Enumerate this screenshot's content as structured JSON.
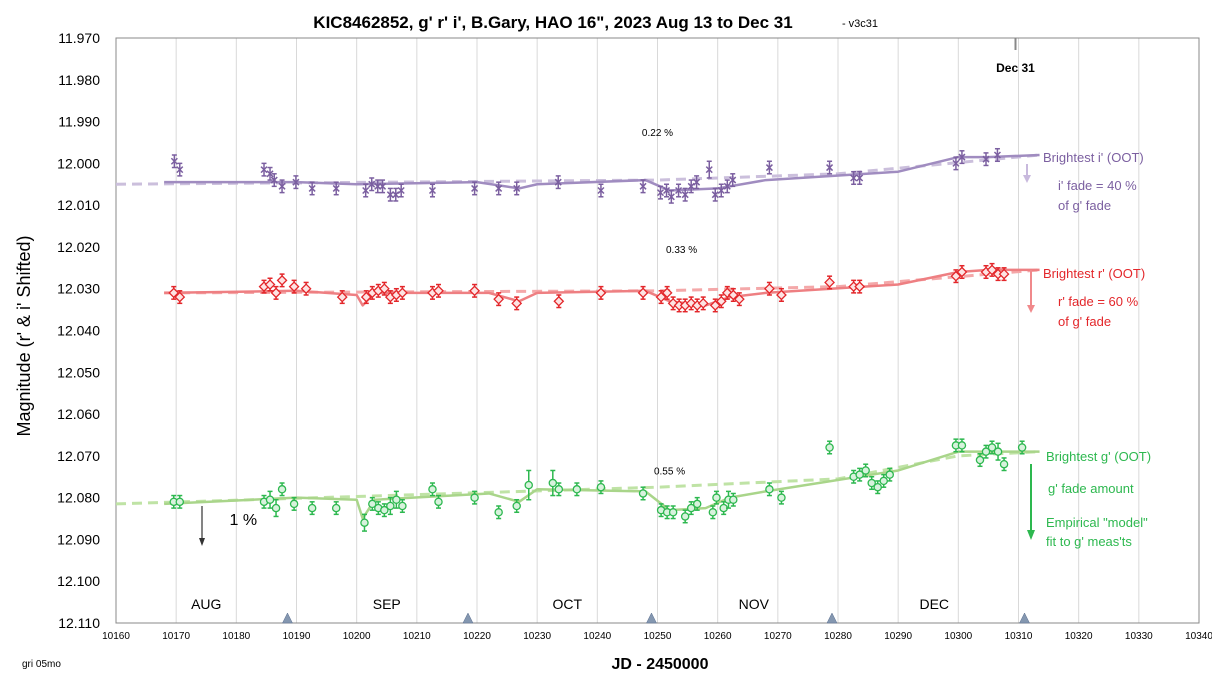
{
  "chart_data": {
    "type": "scatter",
    "title": "KIC8462852, g' r' i', B.Gary, HAO 16\", 2023 Aug 13 to Dec 31",
    "version": "- v3c31",
    "xlabel": "JD - 2450000",
    "ylabel": "Magnitude  (r' & i' Shifted)",
    "footnote": "gri 05mo",
    "xlim": [
      10160,
      10340
    ],
    "ylim": [
      11.97,
      12.11
    ],
    "y_inverted": true,
    "xticks": [
      10160,
      10170,
      10180,
      10190,
      10200,
      10210,
      10220,
      10230,
      10240,
      10250,
      10260,
      10270,
      10280,
      10290,
      10300,
      10310,
      10320,
      10330,
      10340
    ],
    "yticks": [
      11.97,
      11.98,
      11.99,
      12.0,
      12.01,
      12.02,
      12.03,
      12.04,
      12.05,
      12.06,
      12.07,
      12.08,
      12.09,
      12.1,
      12.11
    ],
    "ytick_labels": [
      "11.970",
      "11.980",
      "11.990",
      "12.000",
      "12.010",
      "12.020",
      "12.030",
      "12.040",
      "12.050",
      "12.060",
      "12.070",
      "12.080",
      "12.090",
      "12.100",
      "12.110"
    ],
    "grid": "vertical",
    "months": [
      {
        "label": "AUG",
        "x": 10175
      },
      {
        "label": "SEP",
        "x": 10205
      },
      {
        "label": "OCT",
        "x": 10235
      },
      {
        "label": "NOV",
        "x": 10266
      },
      {
        "label": "DEC",
        "x": 10296
      }
    ],
    "month_markers": [
      10188.5,
      10218.5,
      10249,
      10279,
      10311
    ],
    "dec31_marker": {
      "label": "Dec 31",
      "x": 10309.5
    },
    "series": [
      {
        "name": "i'",
        "color": "#7b5fa0",
        "marker": "x",
        "points": [
          [
            10169.7,
            11.9995,
            0.0015
          ],
          [
            10170.6,
            12.0015,
            0.0015
          ],
          [
            10184.6,
            12.0015,
            0.0015
          ],
          [
            10185.6,
            12.0025,
            0.0015
          ],
          [
            10186.3,
            12.004,
            0.0015
          ],
          [
            10187.6,
            12.0055,
            0.0015
          ],
          [
            10189.9,
            12.0045,
            0.0015
          ],
          [
            10192.6,
            12.006,
            0.0015
          ],
          [
            10196.6,
            12.006,
            0.0015
          ],
          [
            10201.5,
            12.0065,
            0.0015
          ],
          [
            10202.5,
            12.005,
            0.0015
          ],
          [
            10203.5,
            12.0055,
            0.0015
          ],
          [
            10204.3,
            12.0055,
            0.0015
          ],
          [
            10205.6,
            12.0075,
            0.0015
          ],
          [
            10206.5,
            12.0075,
            0.0015
          ],
          [
            10207.4,
            12.0065,
            0.0015
          ],
          [
            10212.6,
            12.0065,
            0.0015
          ],
          [
            10219.6,
            12.006,
            0.0015
          ],
          [
            10223.6,
            12.006,
            0.0015
          ],
          [
            10226.6,
            12.006,
            0.0015
          ],
          [
            10233.5,
            12.0045,
            0.0015
          ],
          [
            10240.6,
            12.0065,
            0.0015
          ],
          [
            10247.6,
            12.0055,
            0.0015
          ],
          [
            10250.5,
            12.007,
            0.0015
          ],
          [
            10251.5,
            12.0065,
            0.0015
          ],
          [
            10252.3,
            12.008,
            0.0015
          ],
          [
            10253.5,
            12.0065,
            0.0015
          ],
          [
            10254.6,
            12.0075,
            0.0015
          ],
          [
            10255.6,
            12.0055,
            0.0015
          ],
          [
            10256.5,
            12.0045,
            0.0015
          ],
          [
            10258.6,
            12.0015,
            0.002
          ],
          [
            10259.6,
            12.0075,
            0.0015
          ],
          [
            10260.6,
            12.0065,
            0.0015
          ],
          [
            10261.6,
            12.0055,
            0.0015
          ],
          [
            10262.5,
            12.004,
            0.0015
          ],
          [
            10268.6,
            12.001,
            0.0015
          ],
          [
            10278.6,
            12.001,
            0.0015
          ],
          [
            10282.6,
            12.0035,
            0.0015
          ],
          [
            10283.6,
            12.0035,
            0.0015
          ],
          [
            10299.6,
            12.0,
            0.0015
          ],
          [
            10300.6,
            11.9985,
            0.0015
          ],
          [
            10304.6,
            11.999,
            0.0015
          ],
          [
            10306.5,
            11.998,
            0.0015
          ]
        ],
        "trend_line": [
          [
            10160,
            12.005
          ],
          [
            10250,
            12.004
          ],
          [
            10280,
            12.0025
          ],
          [
            10313.5,
            11.998
          ]
        ],
        "model_line": [
          [
            10168,
            12.0045
          ],
          [
            10190,
            12.0045
          ],
          [
            10200,
            12.005
          ],
          [
            10220,
            12.0045
          ],
          [
            10227,
            12.006
          ],
          [
            10230,
            12.005
          ],
          [
            10248,
            12.004
          ],
          [
            10252,
            12.0065
          ],
          [
            10260,
            12.006
          ],
          [
            10268,
            12.004
          ],
          [
            10290,
            12.002
          ],
          [
            10300,
            11.9985
          ],
          [
            10305,
            11.9985
          ],
          [
            10313.5,
            11.998
          ]
        ]
      },
      {
        "name": "r'",
        "color": "#e3262a",
        "marker": "diamond",
        "points": [
          [
            10169.6,
            12.031,
            0.0015
          ],
          [
            10170.6,
            12.032,
            0.0015
          ],
          [
            10184.6,
            12.0295,
            0.0015
          ],
          [
            10185.6,
            12.029,
            0.0015
          ],
          [
            10186.6,
            12.031,
            0.0015
          ],
          [
            10187.6,
            12.028,
            0.0015
          ],
          [
            10189.6,
            12.0295,
            0.0015
          ],
          [
            10191.6,
            12.03,
            0.0015
          ],
          [
            10197.6,
            12.032,
            0.0015
          ],
          [
            10201.6,
            12.032,
            0.0015
          ],
          [
            10202.6,
            12.031,
            0.0015
          ],
          [
            10203.6,
            12.0305,
            0.0015
          ],
          [
            10204.6,
            12.03,
            0.0015
          ],
          [
            10205.6,
            12.032,
            0.0015
          ],
          [
            10206.6,
            12.0315,
            0.0015
          ],
          [
            10207.6,
            12.031,
            0.0015
          ],
          [
            10212.6,
            12.031,
            0.0015
          ],
          [
            10213.6,
            12.0305,
            0.0015
          ],
          [
            10219.6,
            12.0305,
            0.0015
          ],
          [
            10223.6,
            12.0325,
            0.0015
          ],
          [
            10226.6,
            12.0335,
            0.0015
          ],
          [
            10233.6,
            12.033,
            0.0015
          ],
          [
            10240.6,
            12.031,
            0.0015
          ],
          [
            10247.6,
            12.031,
            0.0015
          ],
          [
            10250.6,
            12.032,
            0.0015
          ],
          [
            10251.6,
            12.031,
            0.0015
          ],
          [
            10252.6,
            12.0335,
            0.0015
          ],
          [
            10253.6,
            12.034,
            0.0015
          ],
          [
            10254.6,
            12.034,
            0.0015
          ],
          [
            10255.6,
            12.0335,
            0.0015
          ],
          [
            10256.6,
            12.034,
            0.0015
          ],
          [
            10257.6,
            12.0335,
            0.0015
          ],
          [
            10259.6,
            12.034,
            0.0015
          ],
          [
            10260.6,
            12.033,
            0.0015
          ],
          [
            10261.6,
            12.031,
            0.0015
          ],
          [
            10262.6,
            12.0315,
            0.0015
          ],
          [
            10263.6,
            12.0325,
            0.0015
          ],
          [
            10268.6,
            12.03,
            0.0015
          ],
          [
            10270.6,
            12.0315,
            0.0015
          ],
          [
            10278.6,
            12.0285,
            0.0015
          ],
          [
            10282.6,
            12.0295,
            0.0015
          ],
          [
            10283.6,
            12.0295,
            0.0015
          ],
          [
            10299.6,
            12.027,
            0.0015
          ],
          [
            10300.6,
            12.026,
            0.0015
          ],
          [
            10304.6,
            12.026,
            0.0015
          ],
          [
            10305.6,
            12.0255,
            0.0015
          ],
          [
            10306.6,
            12.0265,
            0.0015
          ],
          [
            10307.6,
            12.0265,
            0.0015
          ]
        ],
        "trend_line": [
          [
            10168,
            12.031
          ],
          [
            10250,
            12.0305
          ],
          [
            10280,
            12.0295
          ],
          [
            10313.5,
            12.0255
          ]
        ],
        "model_line": [
          [
            10168,
            12.031
          ],
          [
            10190,
            12.0305
          ],
          [
            10200,
            12.0315
          ],
          [
            10201,
            12.034
          ],
          [
            10203,
            12.031
          ],
          [
            10222,
            12.031
          ],
          [
            10227,
            12.033
          ],
          [
            10230,
            12.031
          ],
          [
            10248,
            12.0305
          ],
          [
            10252,
            12.033
          ],
          [
            10258,
            12.034
          ],
          [
            10262,
            12.032
          ],
          [
            10268,
            12.031
          ],
          [
            10290,
            12.029
          ],
          [
            10300,
            12.026
          ],
          [
            10305,
            12.0255
          ],
          [
            10313.5,
            12.0255
          ]
        ]
      },
      {
        "name": "g'",
        "color": "#2db84f",
        "marker": "circle",
        "points": [
          [
            10169.6,
            12.081,
            0.0015
          ],
          [
            10170.6,
            12.081,
            0.0015
          ],
          [
            10184.6,
            12.081,
            0.0015
          ],
          [
            10185.6,
            12.0805,
            0.002
          ],
          [
            10186.6,
            12.0825,
            0.002
          ],
          [
            10187.6,
            12.078,
            0.0015
          ],
          [
            10189.6,
            12.0815,
            0.0015
          ],
          [
            10192.6,
            12.0825,
            0.0015
          ],
          [
            10196.6,
            12.0825,
            0.0015
          ],
          [
            10201.3,
            12.086,
            0.002
          ],
          [
            10202.6,
            12.0815,
            0.0015
          ],
          [
            10203.6,
            12.0825,
            0.0015
          ],
          [
            10204.6,
            12.083,
            0.0015
          ],
          [
            10205.6,
            12.082,
            0.002
          ],
          [
            10206.6,
            12.0805,
            0.002
          ],
          [
            10207.6,
            12.082,
            0.0015
          ],
          [
            10212.6,
            12.078,
            0.0015
          ],
          [
            10213.6,
            12.081,
            0.0015
          ],
          [
            10219.6,
            12.08,
            0.0015
          ],
          [
            10223.6,
            12.0835,
            0.0015
          ],
          [
            10226.6,
            12.082,
            0.0015
          ],
          [
            10228.6,
            12.077,
            0.0035
          ],
          [
            10232.6,
            12.0765,
            0.003
          ],
          [
            10233.6,
            12.078,
            0.0015
          ],
          [
            10236.6,
            12.078,
            0.0015
          ],
          [
            10240.6,
            12.0775,
            0.0015
          ],
          [
            10247.6,
            12.079,
            0.0015
          ],
          [
            10250.6,
            12.083,
            0.0015
          ],
          [
            10251.6,
            12.0835,
            0.0015
          ],
          [
            10252.6,
            12.0835,
            0.0015
          ],
          [
            10254.6,
            12.0845,
            0.0015
          ],
          [
            10255.6,
            12.0825,
            0.0015
          ],
          [
            10256.6,
            12.0815,
            0.0015
          ],
          [
            10259.2,
            12.0835,
            0.0015
          ],
          [
            10259.8,
            12.08,
            0.0015
          ],
          [
            10261.0,
            12.0825,
            0.0015
          ],
          [
            10261.8,
            12.0805,
            0.002
          ],
          [
            10262.6,
            12.0805,
            0.0015
          ],
          [
            10268.6,
            12.078,
            0.0015
          ],
          [
            10270.6,
            12.08,
            0.0015
          ],
          [
            10278.6,
            12.068,
            0.0015
          ],
          [
            10282.6,
            12.075,
            0.0015
          ],
          [
            10283.6,
            12.0745,
            0.0015
          ],
          [
            10284.6,
            12.0735,
            0.0015
          ],
          [
            10285.6,
            12.0765,
            0.0015
          ],
          [
            10286.6,
            12.0775,
            0.0015
          ],
          [
            10287.6,
            12.076,
            0.0015
          ],
          [
            10288.6,
            12.0745,
            0.0015
          ],
          [
            10299.6,
            12.0675,
            0.0015
          ],
          [
            10300.6,
            12.0675,
            0.0015
          ],
          [
            10303.6,
            12.071,
            0.0015
          ],
          [
            10304.6,
            12.069,
            0.0015
          ],
          [
            10305.6,
            12.068,
            0.0015
          ],
          [
            10306.6,
            12.069,
            0.002
          ],
          [
            10307.6,
            12.072,
            0.0015
          ],
          [
            10310.6,
            12.068,
            0.0015
          ]
        ],
        "trend_line": [
          [
            10160,
            12.0815
          ],
          [
            10250,
            12.0775
          ],
          [
            10280,
            12.0755
          ],
          [
            10300,
            12.07
          ],
          [
            10313.5,
            12.069
          ]
        ],
        "model_line": [
          [
            10168,
            12.0815
          ],
          [
            10190,
            12.08
          ],
          [
            10200,
            12.0805
          ],
          [
            10201,
            12.085
          ],
          [
            10203,
            12.0805
          ],
          [
            10222,
            12.079
          ],
          [
            10227,
            12.081
          ],
          [
            10230,
            12.078
          ],
          [
            10248,
            12.0785
          ],
          [
            10252,
            12.083
          ],
          [
            10258,
            12.0825
          ],
          [
            10262,
            12.08
          ],
          [
            10268,
            12.0785
          ],
          [
            10290,
            12.0735
          ],
          [
            10300,
            12.069
          ],
          [
            10305,
            12.069
          ],
          [
            10313.5,
            12.069
          ]
        ]
      }
    ],
    "annotations": [
      {
        "text": "0.22 %",
        "x": 10250,
        "y": 11.9935
      },
      {
        "text": "0.33 %",
        "x": 10254,
        "y": 12.0215
      },
      {
        "text": "0.55 %",
        "x": 10252,
        "y": 12.0745
      },
      {
        "text": "1 %",
        "x": 10177,
        "y": 12.0865
      }
    ],
    "side_labels": {
      "i": [
        "Brightest i' (OOT)",
        "i' fade = 40 %",
        "of g' fade"
      ],
      "r": [
        "Brightest r' (OOT)",
        "r' fade = 60 %",
        "of g' fade"
      ],
      "g": [
        "Brightest g' (OOT)",
        "g' fade amount",
        "Empirical \"model\"",
        "fit to g' meas'ts"
      ]
    }
  }
}
